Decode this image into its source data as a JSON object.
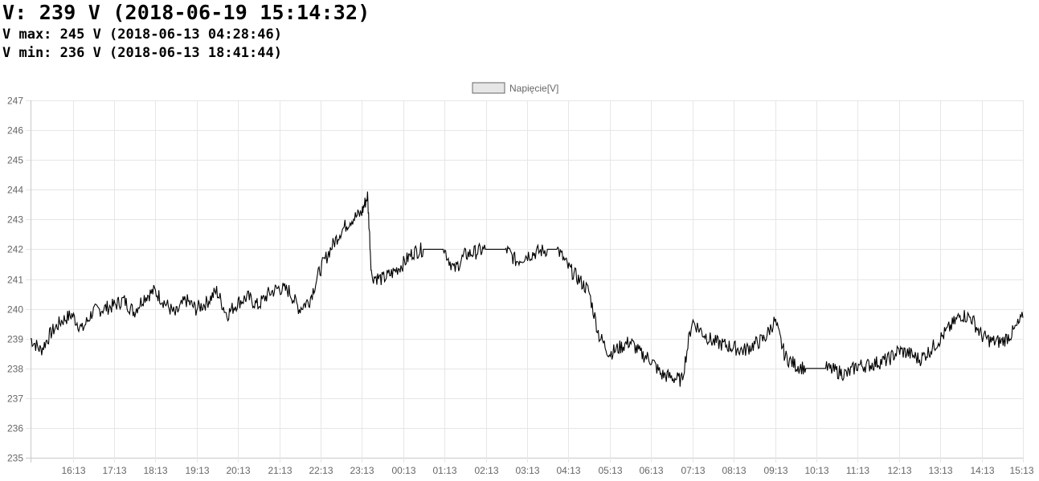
{
  "header": {
    "current": "V: 239 V (2018-06-19 15:14:32)",
    "max": "V max: 245 V (2018-06-13 04:28:46)",
    "min": "V min: 236 V (2018-06-13 18:41:44)"
  },
  "chart_data": {
    "type": "line",
    "title": "",
    "xlabel": "",
    "ylabel": "",
    "legend": {
      "label": "Napięcie[V]",
      "position": "top",
      "swatch_color": "#e6e6e6"
    },
    "ylim": [
      235,
      247
    ],
    "yticks": [
      235,
      236,
      237,
      238,
      239,
      240,
      241,
      242,
      243,
      244,
      245,
      246,
      247
    ],
    "xlim": [
      "15:13",
      "15:13"
    ],
    "xtick_labels": [
      "16:13",
      "17:13",
      "18:13",
      "19:13",
      "20:13",
      "21:13",
      "22:13",
      "23:13",
      "00:13",
      "01:13",
      "02:13",
      "03:13",
      "04:13",
      "05:13",
      "06:13",
      "07:13",
      "08:13",
      "09:13",
      "10:13",
      "11:13",
      "12:13",
      "13:13",
      "14:13",
      "15:13"
    ],
    "grid": true,
    "line_color": "#000000",
    "series": [
      {
        "name": "Napięcie[V]",
        "x_hours": [
          0,
          0.25,
          0.5,
          0.75,
          1,
          1.25,
          1.5,
          1.75,
          2,
          2.25,
          2.5,
          2.75,
          3,
          3.25,
          3.5,
          3.75,
          4,
          4.25,
          4.5,
          4.75,
          5,
          5.25,
          5.5,
          5.75,
          6,
          6.25,
          6.5,
          6.75,
          7,
          7.25,
          7.5,
          7.75,
          8,
          8.15,
          8.25,
          8.5,
          8.75,
          9,
          9.25,
          9.5,
          9.75,
          10,
          10.25,
          10.5,
          10.75,
          11,
          11.25,
          11.5,
          11.75,
          12,
          12.25,
          12.5,
          12.75,
          13,
          13.25,
          13.5,
          13.75,
          14,
          14.25,
          14.5,
          14.75,
          15,
          15.25,
          15.5,
          15.75,
          16,
          16.25,
          16.5,
          16.75,
          17,
          17.25,
          17.5,
          17.75,
          18,
          18.25,
          18.5,
          18.75,
          19,
          19.25,
          19.5,
          19.75,
          20,
          20.25,
          20.5,
          20.75,
          21,
          21.25,
          21.5,
          21.75,
          22,
          22.25,
          22.5,
          22.75,
          23,
          23.25,
          23.5,
          23.75,
          24
        ],
        "values": [
          239,
          238.6,
          239.2,
          239.6,
          239.8,
          239.3,
          239.9,
          240,
          240.1,
          240.3,
          239.9,
          240.4,
          240.6,
          240.2,
          239.8,
          240.3,
          240,
          240.2,
          240.6,
          239.8,
          240.2,
          240.4,
          240.1,
          240.5,
          240.7,
          240.6,
          240,
          240.3,
          241.3,
          242,
          242.6,
          243,
          243.2,
          243.8,
          241.1,
          241,
          241.2,
          241.5,
          241.9,
          242,
          242,
          242,
          241.3,
          241.8,
          241.9,
          242,
          242,
          242,
          241.6,
          241.8,
          241.9,
          242,
          242,
          241.4,
          241,
          240.6,
          239.1,
          238.5,
          238.7,
          238.9,
          238.5,
          238.3,
          237.8,
          237.7,
          237.6,
          239.6,
          239.2,
          238.9,
          238.8,
          238.7,
          238.6,
          238.8,
          239,
          239.6,
          238.4,
          238.1,
          238,
          238,
          238,
          237.9,
          237.8,
          238.1,
          238.1,
          238.2,
          238.3,
          238.6,
          238.5,
          238.3,
          238.6,
          239,
          239.4,
          239.8,
          239.7,
          239.1,
          238.9,
          238.9,
          239.2,
          239.7
        ]
      }
    ]
  }
}
